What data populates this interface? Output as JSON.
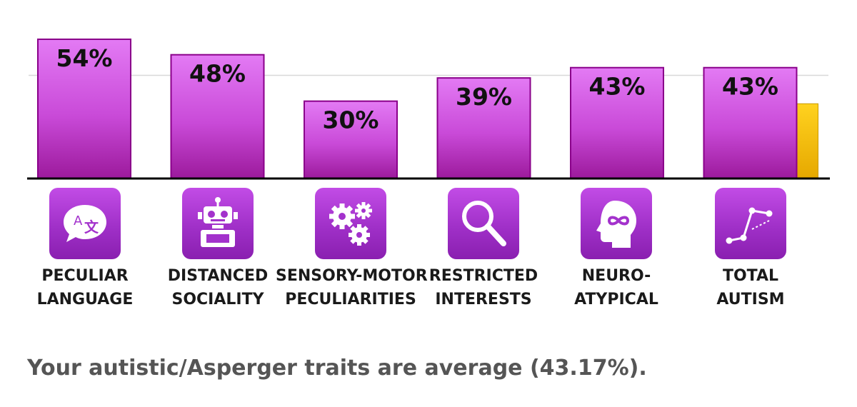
{
  "chart_data": {
    "type": "bar",
    "categories": [
      "PECULIAR LANGUAGE",
      "DISTANCED SOCIALITY",
      "SENSORY-MOTOR PECULIARITIES",
      "RESTRICTED INTERESTS",
      "NEURO-ATYPICAL",
      "TOTAL AUTISM"
    ],
    "category_lines": [
      [
        "PECULIAR",
        "LANGUAGE"
      ],
      [
        "DISTANCED",
        "SOCIALITY"
      ],
      [
        "SENSORY-MOTOR",
        "PECULIARITIES"
      ],
      [
        "RESTRICTED",
        "INTERESTS"
      ],
      [
        "NEURO-",
        "ATYPICAL"
      ],
      [
        "TOTAL",
        "AUTISM"
      ]
    ],
    "values": [
      54,
      48,
      30,
      39,
      43,
      43
    ],
    "value_labels": [
      "54%",
      "48%",
      "30%",
      "39%",
      "43%",
      "43%"
    ],
    "reference_value": 29,
    "reference_line": 40,
    "ylim": [
      0,
      60
    ],
    "grid": false,
    "legend": "none",
    "icons": [
      "translate-speech-icon",
      "robot-icon",
      "gears-icon",
      "magnifier-icon",
      "head-infinity-icon",
      "constellation-graph-icon"
    ],
    "colors": {
      "bar_top": "#e06af2",
      "bar_bottom": "#9c1a9c",
      "bar_border": "#8a008a",
      "reference_bar": "#f5c400",
      "axis": "#000000",
      "gridline": "#d8d8d8",
      "icon_bg": "#a332cc"
    }
  },
  "summary": "Your autistic/Asperger traits are average (43.17%)."
}
